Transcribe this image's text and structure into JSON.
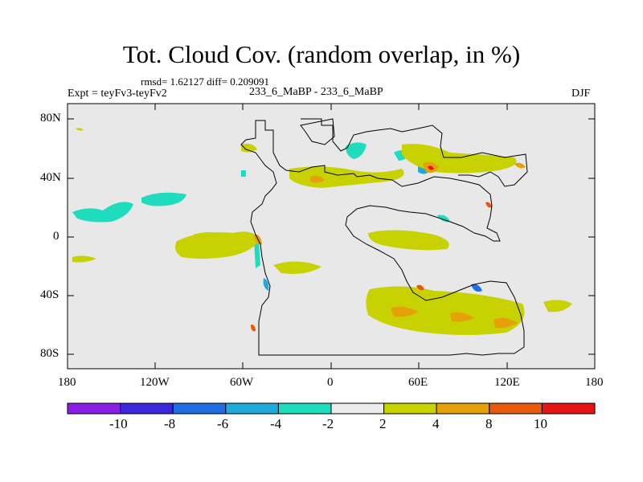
{
  "title": "Tot. Cloud Cov. (random overlap, in %)",
  "stats": "rmsd= 1.62127 diff= 0.209091",
  "experiment": "Expt = teyFv3-teyFv2",
  "comparison": "233_6_MaBP - 233_6_MaBP",
  "season": "DJF",
  "lat_labels": [
    "80N",
    "40N",
    "0",
    "40S",
    "80S"
  ],
  "lon_labels": [
    "180",
    "120W",
    "60W",
    "0",
    "60E",
    "120E",
    "180"
  ],
  "colorbar": {
    "labels": [
      "-10",
      "-8",
      "-6",
      "-4",
      "-2",
      "2",
      "4",
      "8",
      "10"
    ],
    "colors": [
      "#8a1ee6",
      "#3c28dc",
      "#1e6ee6",
      "#1eaadc",
      "#1edcbe",
      "#ececec",
      "#c8d200",
      "#e6a00a",
      "#e65a0a",
      "#e61414"
    ]
  },
  "colors": {
    "background": "#e8e8e8",
    "positive_small": "#c8d200",
    "positive_mid": "#e6a00a",
    "positive_high": "#e61414",
    "negative_small": "#1edcbe",
    "negative_mid": "#1eaadc",
    "negative_high": "#1e6ee6"
  }
}
